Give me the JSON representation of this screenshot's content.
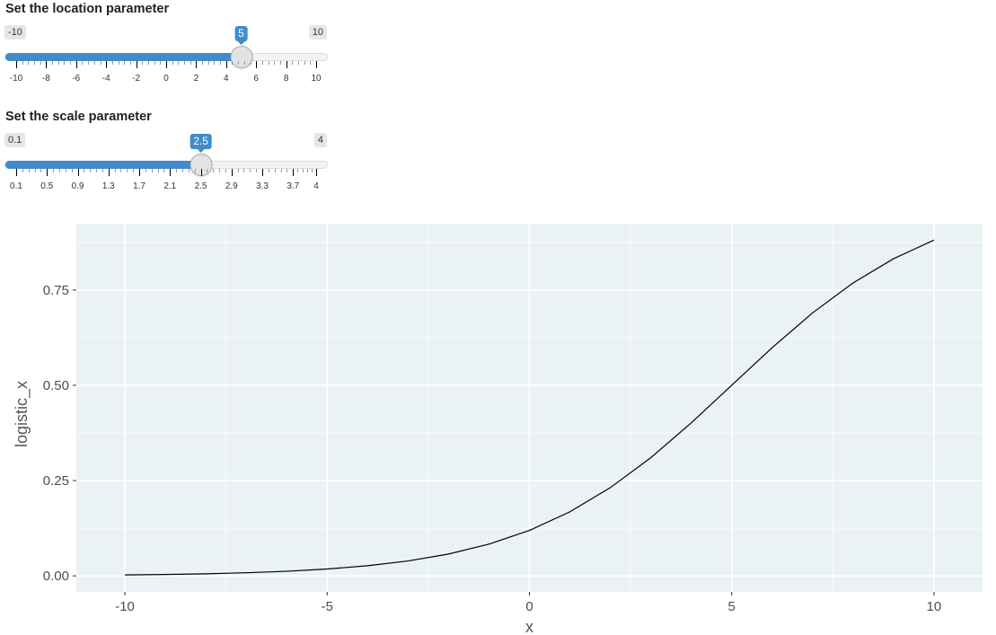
{
  "controls": {
    "location": {
      "label": "Set the location parameter",
      "min_label": "-10",
      "max_label": "10",
      "min": -10,
      "max": 10,
      "value": 5,
      "value_label": "5",
      "ticks": [
        "-10",
        "-8",
        "-6",
        "-4",
        "-2",
        "0",
        "2",
        "4",
        "6",
        "8",
        "10"
      ],
      "tick_values": [
        -10,
        -8,
        -6,
        -4,
        -2,
        0,
        2,
        4,
        6,
        8,
        10
      ]
    },
    "scale": {
      "label": "Set the scale parameter",
      "min_label": "0.1",
      "max_label": "4",
      "min": 0.1,
      "max": 4,
      "value": 2.5,
      "value_label": "2.5",
      "ticks": [
        "0.1",
        "0.5",
        "0.9",
        "1.3",
        "1.7",
        "2.1",
        "2.5",
        "2.9",
        "3.3",
        "3.7",
        "4"
      ],
      "tick_values": [
        0.1,
        0.5,
        0.9,
        1.3,
        1.7,
        2.1,
        2.5,
        2.9,
        3.3,
        3.7,
        4
      ]
    }
  },
  "colors": {
    "accent": "#428bca",
    "panel_background": "#eaf2f4",
    "grid": "#ffffff",
    "line": "#000000"
  },
  "chart_data": {
    "type": "line",
    "title": "",
    "xlabel": "x",
    "ylabel": "logistic_x",
    "xlim": [
      -11.2,
      11.2
    ],
    "ylim": [
      -0.042,
      0.924
    ],
    "x_ticks": [
      -10,
      -5,
      0,
      5,
      10
    ],
    "x_tick_labels": [
      "-10",
      "-5",
      "0",
      "5",
      "10"
    ],
    "y_ticks": [
      0,
      0.25,
      0.5,
      0.75
    ],
    "y_tick_labels": [
      "0.00",
      "0.25",
      "0.50",
      "0.75"
    ],
    "grid": true,
    "series": [
      {
        "x": [
          -10,
          -9,
          -8,
          -7,
          -6,
          -5,
          -4,
          -3,
          -2,
          -1,
          0,
          1,
          2,
          3,
          4,
          5,
          6,
          7,
          8,
          9,
          10
        ],
        "y": [
          0.0025,
          0.0037,
          0.0055,
          0.0082,
          0.0121,
          0.018,
          0.0266,
          0.0392,
          0.0573,
          0.0832,
          0.1192,
          0.168,
          0.2315,
          0.31,
          0.4013,
          0.5,
          0.5987,
          0.69,
          0.7685,
          0.832,
          0.8808
        ]
      }
    ]
  }
}
